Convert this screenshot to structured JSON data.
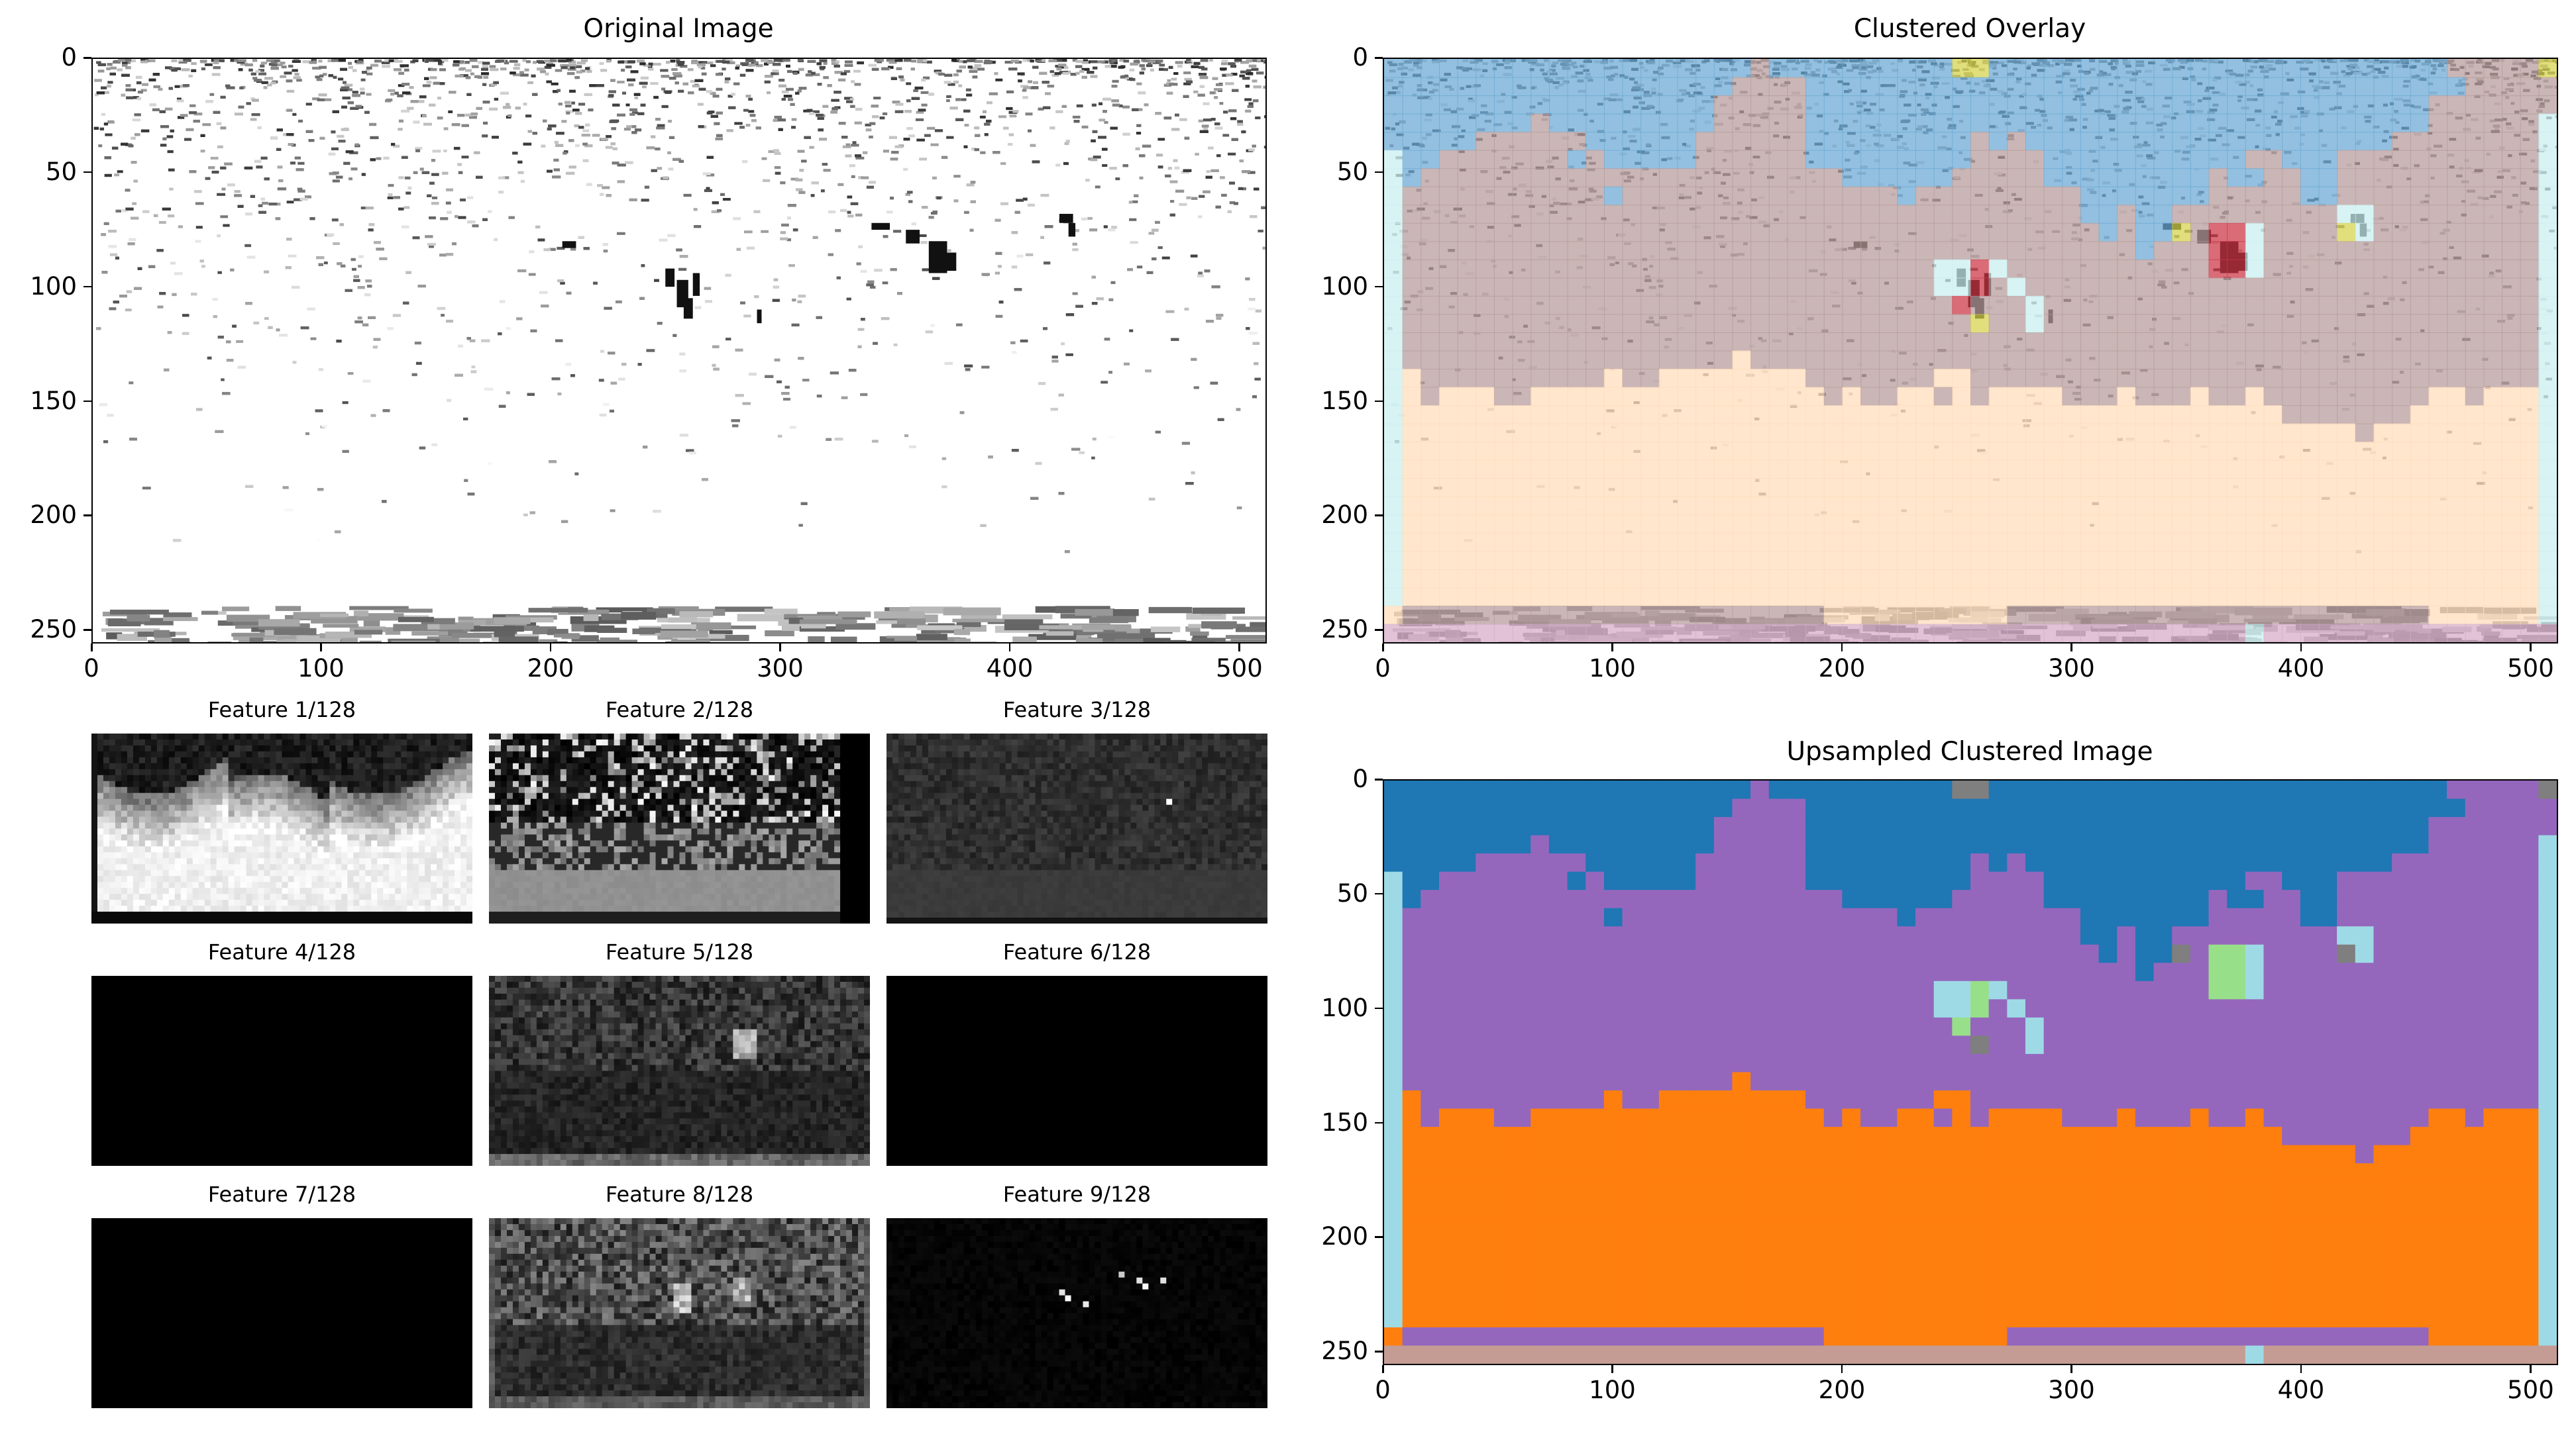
{
  "figure": {
    "panels": {
      "original": {
        "title": "Original Image"
      },
      "overlay": {
        "title": "Clustered Overlay"
      },
      "upsampled": {
        "title": "Upsampled Clustered Image"
      }
    },
    "features": [
      {
        "label": "Feature 1/128"
      },
      {
        "label": "Feature 2/128"
      },
      {
        "label": "Feature 3/128"
      },
      {
        "label": "Feature 4/128"
      },
      {
        "label": "Feature 5/128"
      },
      {
        "label": "Feature 6/128"
      },
      {
        "label": "Feature 7/128"
      },
      {
        "label": "Feature 8/128"
      },
      {
        "label": "Feature 9/128"
      }
    ],
    "cluster_colors": {
      "sky": "#1f77b4",
      "mid": "#9467bd",
      "ground": "#ff7f0e",
      "edge": "#9edae5",
      "object": "#98df8a",
      "dark": "#7f7f7f",
      "bottom": "#c49c94"
    }
  },
  "chart_data": [
    {
      "type": "heatmap",
      "title": "Original Image",
      "xticks": [
        "0",
        "100",
        "200",
        "300",
        "400",
        "500"
      ],
      "yticks": [
        "0",
        "50",
        "100",
        "150",
        "200",
        "250"
      ],
      "xlim": [
        0,
        512
      ],
      "ylim": [
        256,
        0
      ],
      "colormap": "gray"
    },
    {
      "type": "heatmap",
      "title": "Clustered Overlay",
      "xticks": [
        "0",
        "100",
        "200",
        "300",
        "400",
        "500"
      ],
      "yticks": [
        "0",
        "50",
        "100",
        "150",
        "200",
        "250"
      ],
      "xlim": [
        0,
        512
      ],
      "ylim": [
        256,
        0
      ]
    },
    {
      "type": "heatmap",
      "title": "Upsampled Clustered Image",
      "xticks": [
        "0",
        "100",
        "200",
        "300",
        "400",
        "500"
      ],
      "yticks": [
        "0",
        "50",
        "100",
        "150",
        "200",
        "250"
      ],
      "xlim": [
        0,
        512
      ],
      "ylim": [
        256,
        0
      ]
    }
  ]
}
